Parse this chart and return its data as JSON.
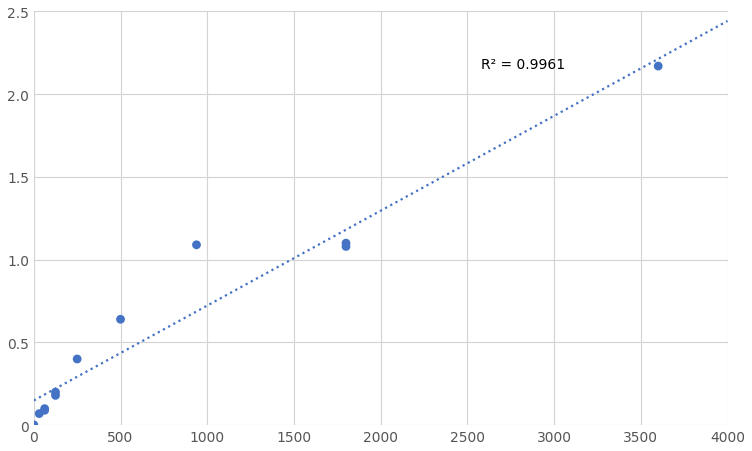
{
  "points_x": [
    0,
    31.25,
    62.5,
    62.5,
    125,
    125,
    250,
    500,
    938,
    1800,
    1800,
    3600
  ],
  "points_y": [
    0.002,
    0.07,
    0.09,
    0.1,
    0.18,
    0.2,
    0.4,
    0.64,
    1.09,
    1.08,
    1.1,
    2.17
  ],
  "r_squared": "R² = 0.9961",
  "r2_x": 2580,
  "r2_y": 2.18,
  "xlim": [
    0,
    4000
  ],
  "ylim": [
    0,
    2.5
  ],
  "xticks": [
    0,
    500,
    1000,
    1500,
    2000,
    2500,
    3000,
    3500,
    4000
  ],
  "yticks": [
    0,
    0.5,
    1.0,
    1.5,
    2.0,
    2.5
  ],
  "dot_color": "#4472C4",
  "line_color": "#4472C4",
  "background_color": "#ffffff",
  "grid_color": "#d3d3d3",
  "dot_size": 40,
  "figsize": [
    7.52,
    4.52
  ],
  "dpi": 100
}
